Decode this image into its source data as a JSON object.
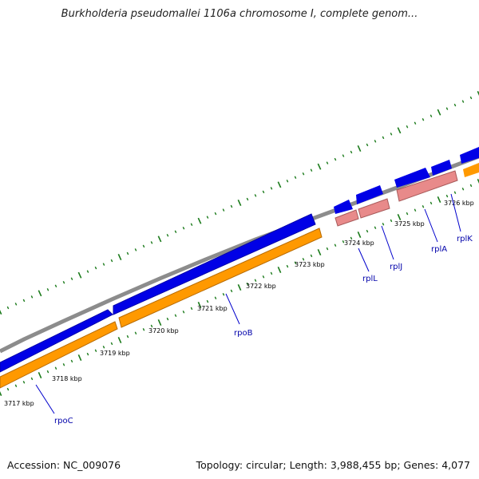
{
  "title": "Burkholderia pseudomallei 1106a chromosome I, complete genom...",
  "kbp_labels": [
    "3717 kbp",
    "3718 kbp",
    "3719 kbp",
    "3720 kbp",
    "3721 kbp",
    "3722 kbp",
    "3723 kbp",
    "3724 kbp",
    "3725 kbp",
    "3726 kbp"
  ],
  "gene_labels": [
    "rpoC",
    "rpoB",
    "rplL",
    "rplJ",
    "rplA",
    "rplK"
  ],
  "footer": {
    "accession": "Accession: NC_009076",
    "summary": "Topology: circular; Length: 3,988,455 bp; Genes: 4,077"
  },
  "colors": {
    "backbone": "#8c8c8c",
    "forward_gene": "#0000e6",
    "cds": "#ff9900",
    "rna_like": "#e88a8a",
    "tick": "#1a7a1a",
    "gene_label": "#0000aa"
  }
}
